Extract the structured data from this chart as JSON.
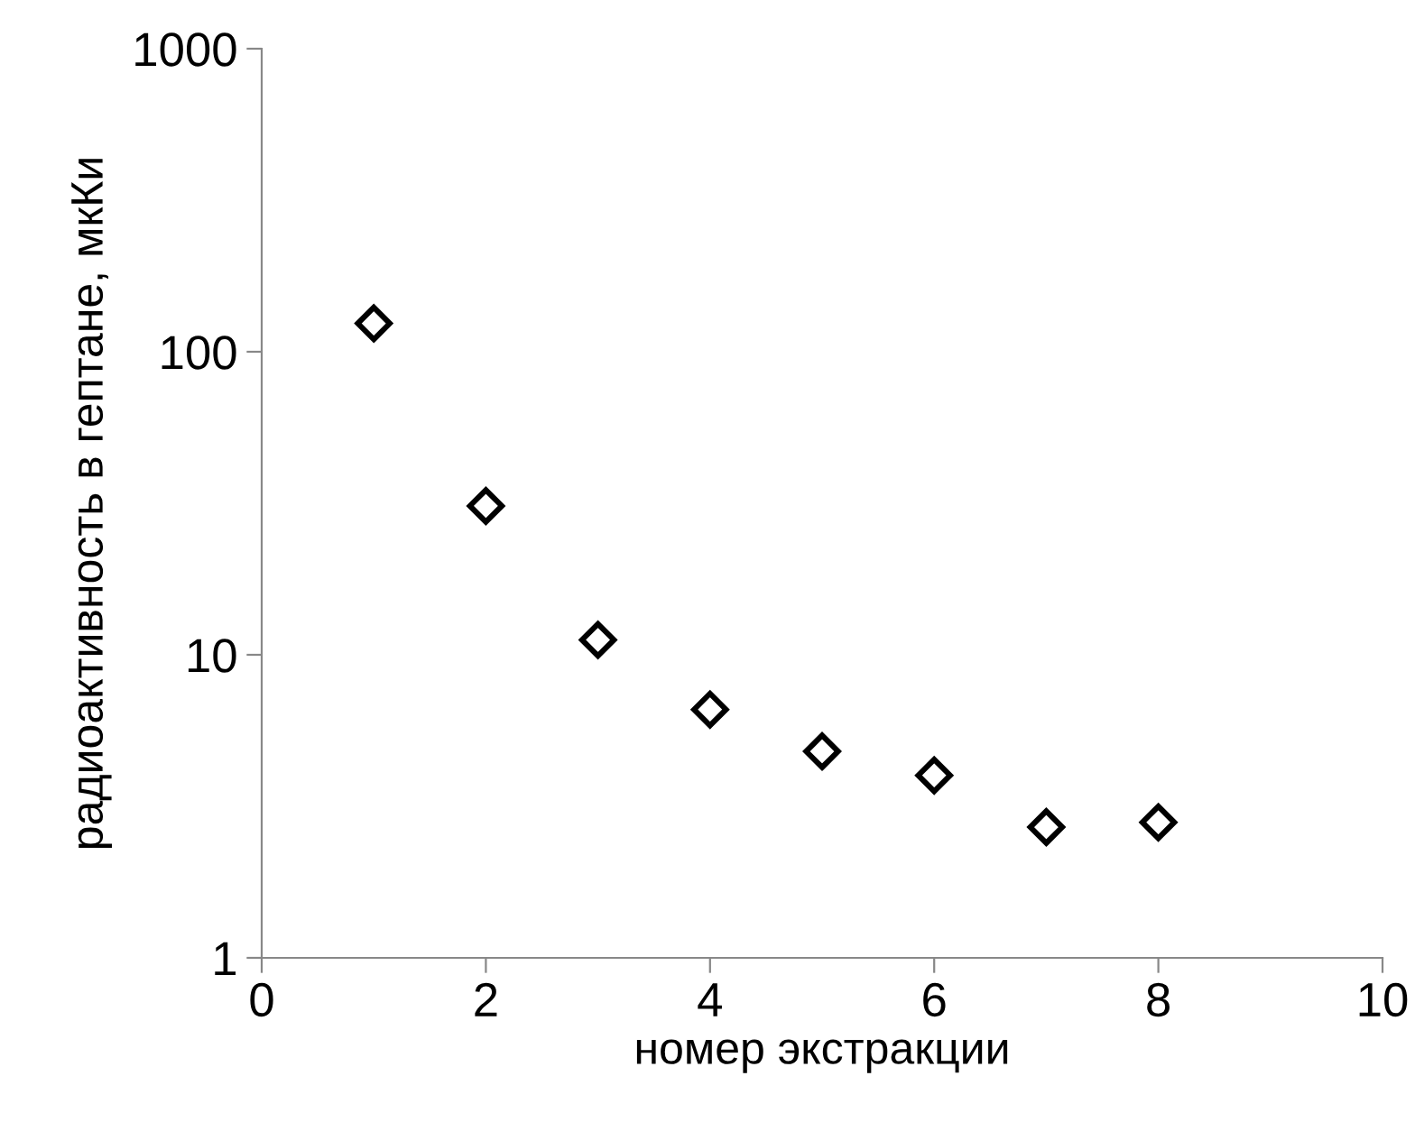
{
  "chart_data": {
    "type": "scatter",
    "xlabel": "номер экстракции",
    "ylabel": "радиоактивность в гептане, мкКи",
    "x": [
      1,
      2,
      3,
      4,
      5,
      6,
      7,
      8
    ],
    "values": [
      124,
      31,
      11.2,
      6.6,
      4.8,
      4.0,
      2.7,
      2.8
    ],
    "color": "#000000",
    "marker": "diamond",
    "log": "y",
    "xlim": [
      0,
      10
    ],
    "xticks": [
      0,
      2,
      4,
      6,
      8,
      10
    ],
    "ylim": [
      1,
      1000
    ],
    "yticks": [
      1,
      10,
      100,
      1000
    ],
    "grid": false,
    "legend": false
  }
}
